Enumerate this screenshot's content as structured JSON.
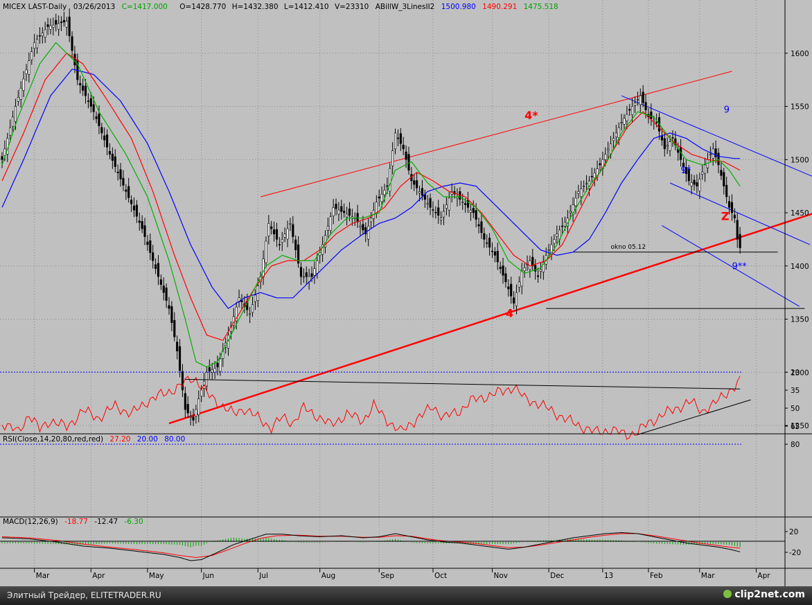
{
  "header": {
    "symbol": "MICEX LAST-Daily",
    "date": "03/26/2013",
    "close": "C=1417.000",
    "open": "O=1428.770",
    "high": "H=1432.380",
    "low": "L=1412.410",
    "volume": "V=23310",
    "indicator_name": "ABillW_3LinesII2",
    "ind_blue": "1500.980",
    "ind_red": "1490.291",
    "ind_green": "1475.518"
  },
  "rsi_header": {
    "label": "RSI(Close,14,20,80,red,red)",
    "v1": "27.20",
    "v2": "20.00",
    "v3": "80.00"
  },
  "macd_header": {
    "label": "MACD(12,26,9)",
    "v1": "-18.77",
    "v2": "-12.47",
    "v3": "-6.30"
  },
  "footer": {
    "left_text": "Элитный Трейдер, ELITETRADER.RU",
    "right_text": "clip2net.com"
  },
  "colors": {
    "background": "#c0c0c0",
    "blue": "#0000ff",
    "red": "#ff0000",
    "green": "#00a000",
    "black": "#000000"
  },
  "chart_data": {
    "type": "line",
    "price_axis": {
      "ticks": [
        1250,
        1300,
        1350,
        1400,
        1450,
        1500,
        1550,
        1600
      ],
      "range": [
        1225,
        1650
      ]
    },
    "rsi_axis": {
      "ticks": [
        20,
        35,
        50,
        65,
        80
      ],
      "range": [
        15,
        90
      ]
    },
    "macd_axis": {
      "ticks": [
        -20,
        20
      ],
      "range": [
        -45,
        40
      ]
    },
    "months": [
      {
        "label": "Mar",
        "day": 12
      },
      {
        "label": "Apr",
        "day": 33
      },
      {
        "label": "May",
        "day": 54
      },
      {
        "label": "Jun",
        "day": 74
      },
      {
        "label": "Jul",
        "day": 95
      },
      {
        "label": "Aug",
        "day": 118
      },
      {
        "label": "Sep",
        "day": 140
      },
      {
        "label": "Oct",
        "day": 160
      },
      {
        "label": "Nov",
        "day": 182
      },
      {
        "label": "Dec",
        "day": 203
      },
      {
        "label": "13",
        "day": 223
      },
      {
        "label": "Feb",
        "day": 240
      },
      {
        "label": "Mar",
        "day": 259
      },
      {
        "label": "Apr",
        "day": 280
      }
    ],
    "price_keypoints": [
      [
        0,
        1500
      ],
      [
        5,
        1550
      ],
      [
        12,
        1610
      ],
      [
        17,
        1625
      ],
      [
        24,
        1630
      ],
      [
        28,
        1575
      ],
      [
        34,
        1545
      ],
      [
        40,
        1505
      ],
      [
        46,
        1470
      ],
      [
        52,
        1435
      ],
      [
        58,
        1390
      ],
      [
        62,
        1360
      ],
      [
        65,
        1320
      ],
      [
        68,
        1265
      ],
      [
        71,
        1255
      ],
      [
        73,
        1275
      ],
      [
        76,
        1300
      ],
      [
        80,
        1305
      ],
      [
        84,
        1335
      ],
      [
        88,
        1370
      ],
      [
        92,
        1355
      ],
      [
        96,
        1390
      ],
      [
        99,
        1440
      ],
      [
        103,
        1420
      ],
      [
        107,
        1440
      ],
      [
        111,
        1390
      ],
      [
        115,
        1390
      ],
      [
        119,
        1420
      ],
      [
        123,
        1455
      ],
      [
        127,
        1450
      ],
      [
        131,
        1445
      ],
      [
        135,
        1430
      ],
      [
        139,
        1460
      ],
      [
        143,
        1475
      ],
      [
        146,
        1525
      ],
      [
        149,
        1510
      ],
      [
        152,
        1480
      ],
      [
        155,
        1470
      ],
      [
        159,
        1455
      ],
      [
        163,
        1445
      ],
      [
        167,
        1470
      ],
      [
        171,
        1460
      ],
      [
        175,
        1450
      ],
      [
        179,
        1425
      ],
      [
        183,
        1410
      ],
      [
        187,
        1385
      ],
      [
        190,
        1365
      ],
      [
        193,
        1395
      ],
      [
        196,
        1405
      ],
      [
        199,
        1390
      ],
      [
        202,
        1410
      ],
      [
        206,
        1430
      ],
      [
        210,
        1445
      ],
      [
        214,
        1470
      ],
      [
        218,
        1480
      ],
      [
        222,
        1495
      ],
      [
        226,
        1515
      ],
      [
        230,
        1535
      ],
      [
        234,
        1550
      ],
      [
        237,
        1560
      ],
      [
        240,
        1540
      ],
      [
        243,
        1535
      ],
      [
        246,
        1510
      ],
      [
        249,
        1520
      ],
      [
        252,
        1500
      ],
      [
        255,
        1480
      ],
      [
        258,
        1475
      ],
      [
        261,
        1495
      ],
      [
        264,
        1510
      ],
      [
        266,
        1495
      ],
      [
        268,
        1475
      ],
      [
        270,
        1455
      ],
      [
        272,
        1445
      ],
      [
        273,
        1425
      ],
      [
        274,
        1417
      ]
    ],
    "blue_keypoints": [
      [
        0,
        1455
      ],
      [
        8,
        1500
      ],
      [
        18,
        1560
      ],
      [
        26,
        1585
      ],
      [
        34,
        1580
      ],
      [
        44,
        1555
      ],
      [
        54,
        1515
      ],
      [
        62,
        1470
      ],
      [
        70,
        1420
      ],
      [
        78,
        1380
      ],
      [
        84,
        1360
      ],
      [
        90,
        1370
      ],
      [
        96,
        1375
      ],
      [
        102,
        1370
      ],
      [
        108,
        1370
      ],
      [
        114,
        1385
      ],
      [
        120,
        1400
      ],
      [
        126,
        1415
      ],
      [
        134,
        1430
      ],
      [
        140,
        1440
      ],
      [
        146,
        1445
      ],
      [
        152,
        1455
      ],
      [
        158,
        1470
      ],
      [
        164,
        1475
      ],
      [
        170,
        1478
      ],
      [
        176,
        1475
      ],
      [
        182,
        1460
      ],
      [
        188,
        1445
      ],
      [
        194,
        1430
      ],
      [
        200,
        1415
      ],
      [
        206,
        1410
      ],
      [
        212,
        1413
      ],
      [
        218,
        1425
      ],
      [
        224,
        1450
      ],
      [
        230,
        1478
      ],
      [
        236,
        1500
      ],
      [
        242,
        1520
      ],
      [
        248,
        1525
      ],
      [
        254,
        1520
      ],
      [
        260,
        1510
      ],
      [
        266,
        1503
      ],
      [
        272,
        1501
      ]
    ],
    "red_keypoints": [
      [
        0,
        1480
      ],
      [
        8,
        1525
      ],
      [
        16,
        1575
      ],
      [
        24,
        1600
      ],
      [
        30,
        1590
      ],
      [
        38,
        1560
      ],
      [
        48,
        1520
      ],
      [
        56,
        1470
      ],
      [
        64,
        1410
      ],
      [
        70,
        1370
      ],
      [
        76,
        1335
      ],
      [
        82,
        1330
      ],
      [
        88,
        1355
      ],
      [
        94,
        1380
      ],
      [
        100,
        1400
      ],
      [
        106,
        1405
      ],
      [
        112,
        1405
      ],
      [
        118,
        1415
      ],
      [
        124,
        1430
      ],
      [
        130,
        1440
      ],
      [
        136,
        1445
      ],
      [
        142,
        1455
      ],
      [
        148,
        1475
      ],
      [
        154,
        1488
      ],
      [
        160,
        1480
      ],
      [
        166,
        1470
      ],
      [
        172,
        1465
      ],
      [
        178,
        1450
      ],
      [
        184,
        1430
      ],
      [
        190,
        1410
      ],
      [
        196,
        1400
      ],
      [
        202,
        1405
      ],
      [
        208,
        1420
      ],
      [
        214,
        1450
      ],
      [
        220,
        1480
      ],
      [
        226,
        1505
      ],
      [
        232,
        1530
      ],
      [
        238,
        1545
      ],
      [
        244,
        1530
      ],
      [
        250,
        1515
      ],
      [
        256,
        1505
      ],
      [
        262,
        1500
      ],
      [
        268,
        1498
      ],
      [
        274,
        1490
      ]
    ],
    "green_keypoints": [
      [
        0,
        1495
      ],
      [
        6,
        1540
      ],
      [
        14,
        1590
      ],
      [
        20,
        1610
      ],
      [
        28,
        1590
      ],
      [
        36,
        1545
      ],
      [
        46,
        1505
      ],
      [
        54,
        1465
      ],
      [
        62,
        1405
      ],
      [
        68,
        1350
      ],
      [
        72,
        1310
      ],
      [
        76,
        1305
      ],
      [
        80,
        1310
      ],
      [
        86,
        1340
      ],
      [
        92,
        1370
      ],
      [
        98,
        1400
      ],
      [
        104,
        1410
      ],
      [
        110,
        1405
      ],
      [
        116,
        1405
      ],
      [
        122,
        1430
      ],
      [
        128,
        1445
      ],
      [
        134,
        1445
      ],
      [
        140,
        1450
      ],
      [
        146,
        1490
      ],
      [
        152,
        1498
      ],
      [
        158,
        1478
      ],
      [
        164,
        1465
      ],
      [
        170,
        1465
      ],
      [
        176,
        1455
      ],
      [
        182,
        1435
      ],
      [
        188,
        1405
      ],
      [
        194,
        1393
      ],
      [
        200,
        1398
      ],
      [
        206,
        1420
      ],
      [
        212,
        1450
      ],
      [
        218,
        1475
      ],
      [
        224,
        1495
      ],
      [
        230,
        1525
      ],
      [
        236,
        1545
      ],
      [
        242,
        1540
      ],
      [
        248,
        1520
      ],
      [
        254,
        1500
      ],
      [
        260,
        1495
      ],
      [
        266,
        1500
      ],
      [
        270,
        1490
      ],
      [
        274,
        1475
      ]
    ],
    "trendlines": [
      {
        "color": "#ff0000",
        "width": 2.5,
        "from": [
          62,
          1252
        ],
        "to": [
          302,
          1450
        ]
      },
      {
        "color": "#ff0000",
        "width": 1,
        "from": [
          96,
          1465
        ],
        "to": [
          271,
          1583
        ]
      },
      {
        "color": "#0000ff",
        "width": 1,
        "from": [
          230,
          1560
        ],
        "to": [
          302,
          1483
        ]
      },
      {
        "color": "#0000ff",
        "width": 1,
        "from": [
          248,
          1478
        ],
        "to": [
          300,
          1420
        ]
      },
      {
        "color": "#0000ff",
        "width": 1,
        "from": [
          245,
          1438
        ],
        "to": [
          296,
          1362
        ]
      },
      {
        "color": "#000000",
        "width": 1,
        "from": [
          202,
          1360
        ],
        "to": [
          298,
          1360
        ]
      },
      {
        "color": "#000000",
        "width": 1,
        "from": [
          212,
          1413
        ],
        "to": [
          288,
          1413
        ]
      }
    ],
    "annotations": [
      {
        "text": "4*",
        "color": "#ff0000",
        "day": 194,
        "price": 1538,
        "size": 16
      },
      {
        "text": "4",
        "color": "#ff0000",
        "day": 187,
        "price": 1352,
        "size": 16
      },
      {
        "text": "Z",
        "color": "#ff0000",
        "day": 267,
        "price": 1443,
        "size": 16
      },
      {
        "text": "9",
        "color": "#0000ff",
        "day": 268,
        "price": 1544,
        "size": 13
      },
      {
        "text": "9*",
        "color": "#0000ff",
        "day": 252,
        "price": 1487,
        "size": 13
      },
      {
        "text": "9**",
        "color": "#0000ff",
        "day": 271,
        "price": 1397,
        "size": 13
      },
      {
        "text": "okno 05.12",
        "color": "#000000",
        "day": 226,
        "price": 1416,
        "size": 9
      }
    ],
    "rsi_keypoints": [
      [
        0,
        62
      ],
      [
        6,
        70
      ],
      [
        10,
        55
      ],
      [
        14,
        68
      ],
      [
        18,
        60
      ],
      [
        24,
        66
      ],
      [
        30,
        52
      ],
      [
        36,
        58
      ],
      [
        42,
        48
      ],
      [
        48,
        55
      ],
      [
        54,
        44
      ],
      [
        60,
        38
      ],
      [
        66,
        32
      ],
      [
        70,
        25
      ],
      [
        72,
        26
      ],
      [
        76,
        38
      ],
      [
        80,
        45
      ],
      [
        86,
        55
      ],
      [
        90,
        50
      ],
      [
        96,
        60
      ],
      [
        100,
        66
      ],
      [
        104,
        58
      ],
      [
        108,
        62
      ],
      [
        112,
        50
      ],
      [
        116,
        55
      ],
      [
        122,
        64
      ],
      [
        128,
        55
      ],
      [
        134,
        60
      ],
      [
        138,
        48
      ],
      [
        144,
        62
      ],
      [
        148,
        70
      ],
      [
        152,
        62
      ],
      [
        156,
        56
      ],
      [
        160,
        48
      ],
      [
        164,
        58
      ],
      [
        170,
        52
      ],
      [
        174,
        44
      ],
      [
        180,
        40
      ],
      [
        186,
        36
      ],
      [
        190,
        32
      ],
      [
        194,
        42
      ],
      [
        198,
        45
      ],
      [
        204,
        52
      ],
      [
        210,
        60
      ],
      [
        216,
        66
      ],
      [
        220,
        70
      ],
      [
        226,
        68
      ],
      [
        232,
        72
      ],
      [
        236,
        70
      ],
      [
        240,
        62
      ],
      [
        246,
        55
      ],
      [
        250,
        50
      ],
      [
        256,
        45
      ],
      [
        260,
        52
      ],
      [
        264,
        48
      ],
      [
        268,
        38
      ],
      [
        272,
        33
      ],
      [
        274,
        28
      ]
    ],
    "rsi_lines": [
      {
        "from": [
          68,
          26
        ],
        "to": [
          274,
          34
        ]
      },
      {
        "from": [
          236,
          72
        ],
        "to": [
          278,
          43
        ]
      }
    ],
    "macd_keypoints": [
      [
        0,
        8
      ],
      [
        10,
        6
      ],
      [
        20,
        0
      ],
      [
        30,
        -8
      ],
      [
        40,
        -12
      ],
      [
        50,
        -18
      ],
      [
        60,
        -24
      ],
      [
        66,
        -30
      ],
      [
        70,
        -36
      ],
      [
        74,
        -34
      ],
      [
        80,
        -20
      ],
      [
        86,
        -5
      ],
      [
        92,
        5
      ],
      [
        98,
        15
      ],
      [
        104,
        15
      ],
      [
        110,
        12
      ],
      [
        118,
        10
      ],
      [
        126,
        12
      ],
      [
        134,
        8
      ],
      [
        140,
        10
      ],
      [
        146,
        16
      ],
      [
        152,
        10
      ],
      [
        158,
        4
      ],
      [
        164,
        0
      ],
      [
        170,
        -2
      ],
      [
        176,
        -6
      ],
      [
        182,
        -10
      ],
      [
        188,
        -14
      ],
      [
        194,
        -10
      ],
      [
        200,
        -4
      ],
      [
        206,
        2
      ],
      [
        212,
        8
      ],
      [
        218,
        12
      ],
      [
        224,
        16
      ],
      [
        230,
        18
      ],
      [
        236,
        16
      ],
      [
        242,
        10
      ],
      [
        248,
        4
      ],
      [
        254,
        -2
      ],
      [
        260,
        -6
      ],
      [
        266,
        -10
      ],
      [
        270,
        -14
      ],
      [
        274,
        -19
      ]
    ],
    "signal_keypoints": [
      [
        0,
        10
      ],
      [
        10,
        8
      ],
      [
        20,
        3
      ],
      [
        30,
        -4
      ],
      [
        40,
        -10
      ],
      [
        50,
        -15
      ],
      [
        60,
        -21
      ],
      [
        66,
        -26
      ],
      [
        72,
        -30
      ],
      [
        78,
        -26
      ],
      [
        84,
        -15
      ],
      [
        90,
        -3
      ],
      [
        96,
        7
      ],
      [
        102,
        12
      ],
      [
        110,
        13
      ],
      [
        118,
        11
      ],
      [
        126,
        11
      ],
      [
        134,
        9
      ],
      [
        140,
        9
      ],
      [
        146,
        12
      ],
      [
        152,
        11
      ],
      [
        158,
        6
      ],
      [
        164,
        2
      ],
      [
        170,
        0
      ],
      [
        176,
        -3
      ],
      [
        182,
        -7
      ],
      [
        188,
        -11
      ],
      [
        194,
        -10
      ],
      [
        200,
        -6
      ],
      [
        206,
        -1
      ],
      [
        212,
        4
      ],
      [
        218,
        9
      ],
      [
        224,
        13
      ],
      [
        230,
        16
      ],
      [
        236,
        16
      ],
      [
        242,
        12
      ],
      [
        248,
        7
      ],
      [
        254,
        2
      ],
      [
        260,
        -3
      ],
      [
        266,
        -7
      ],
      [
        270,
        -10
      ],
      [
        274,
        -12
      ]
    ]
  }
}
